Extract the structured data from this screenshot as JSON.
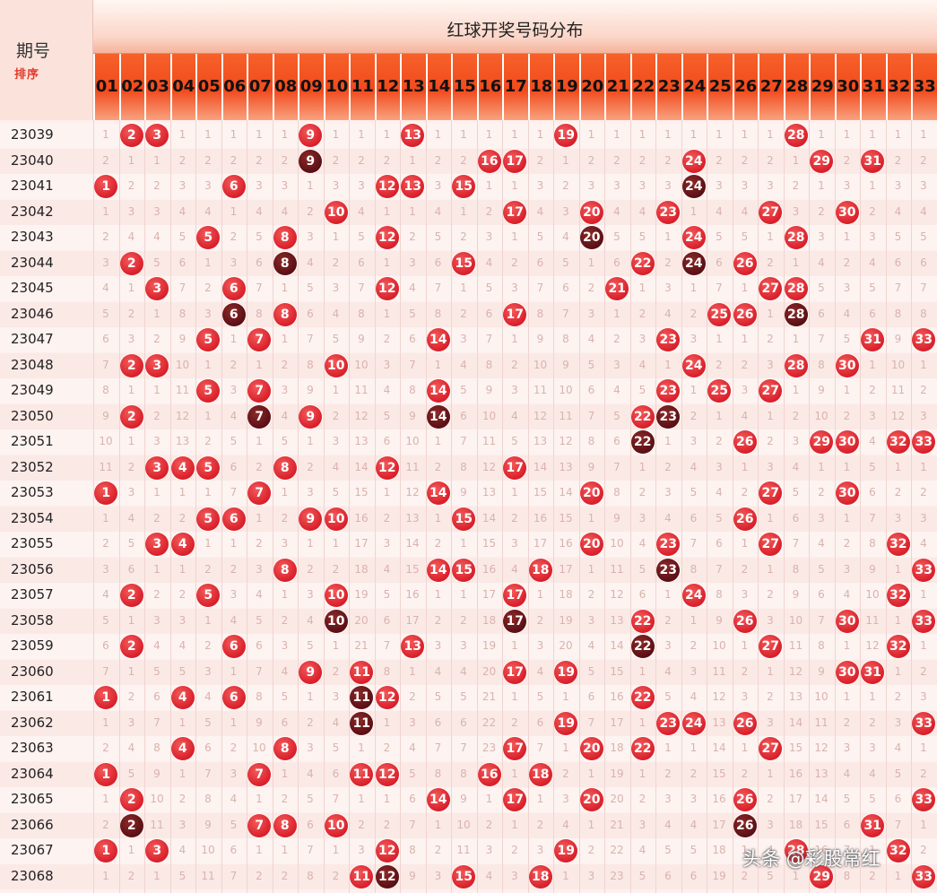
{
  "header": {
    "period_label": "期号",
    "logo_text": "排序",
    "section_title": "红球开奖号码分布"
  },
  "watermark": "头条 @彩股常红",
  "colors": {
    "ball_red": "#d91f2a",
    "ball_dark": "#5a0f14",
    "header_orange": "#f14a1c"
  },
  "chart_data": {
    "type": "table",
    "title": "红球开奖号码分布",
    "numbers": [
      "01",
      "02",
      "03",
      "04",
      "05",
      "06",
      "07",
      "08",
      "09",
      "10",
      "11",
      "12",
      "13",
      "14",
      "15",
      "16",
      "17",
      "18",
      "19",
      "20",
      "21",
      "22",
      "23",
      "24",
      "25",
      "26",
      "27",
      "28",
      "29",
      "30",
      "31",
      "32",
      "33"
    ],
    "draws": [
      {
        "period": "23039",
        "balls": [
          2,
          3,
          9,
          13,
          19,
          28
        ]
      },
      {
        "period": "23040",
        "balls": [
          9,
          16,
          17,
          24,
          29,
          31
        ]
      },
      {
        "period": "23041",
        "balls": [
          1,
          6,
          12,
          13,
          15,
          24
        ]
      },
      {
        "period": "23042",
        "balls": [
          10,
          17,
          20,
          23,
          27,
          30
        ]
      },
      {
        "period": "23043",
        "balls": [
          5,
          8,
          12,
          20,
          24,
          28
        ]
      },
      {
        "period": "23044",
        "balls": [
          2,
          8,
          15,
          22,
          24,
          26
        ]
      },
      {
        "period": "23045",
        "balls": [
          3,
          6,
          12,
          21,
          27,
          28
        ]
      },
      {
        "period": "23046",
        "balls": [
          6,
          8,
          17,
          25,
          26,
          28
        ]
      },
      {
        "period": "23047",
        "balls": [
          5,
          7,
          14,
          23,
          31,
          33
        ]
      },
      {
        "period": "23048",
        "balls": [
          2,
          3,
          10,
          24,
          28,
          30
        ]
      },
      {
        "period": "23049",
        "balls": [
          5,
          7,
          14,
          23,
          25,
          27
        ]
      },
      {
        "period": "23050",
        "balls": [
          2,
          7,
          9,
          14,
          22,
          23
        ]
      },
      {
        "period": "23051",
        "balls": [
          22,
          26,
          29,
          30,
          32,
          33
        ]
      },
      {
        "period": "23052",
        "balls": [
          3,
          4,
          5,
          8,
          12,
          17
        ]
      },
      {
        "period": "23053",
        "balls": [
          1,
          7,
          14,
          20,
          27,
          30
        ]
      },
      {
        "period": "23054",
        "balls": [
          5,
          6,
          9,
          10,
          15,
          26
        ]
      },
      {
        "period": "23055",
        "balls": [
          3,
          4,
          20,
          23,
          27,
          32
        ]
      },
      {
        "period": "23056",
        "balls": [
          8,
          14,
          15,
          18,
          23,
          33
        ]
      },
      {
        "period": "23057",
        "balls": [
          2,
          5,
          10,
          17,
          24,
          32
        ]
      },
      {
        "period": "23058",
        "balls": [
          10,
          17,
          22,
          26,
          30,
          33
        ]
      },
      {
        "period": "23059",
        "balls": [
          2,
          6,
          13,
          22,
          27,
          32
        ]
      },
      {
        "period": "23060",
        "balls": [
          9,
          11,
          17,
          19,
          30,
          31
        ]
      },
      {
        "period": "23061",
        "balls": [
          1,
          4,
          6,
          11,
          12,
          22
        ]
      },
      {
        "period": "23062",
        "balls": [
          11,
          19,
          23,
          24,
          26,
          33
        ]
      },
      {
        "period": "23063",
        "balls": [
          4,
          8,
          17,
          20,
          22,
          27
        ]
      },
      {
        "period": "23064",
        "balls": [
          1,
          7,
          11,
          12,
          16,
          18
        ]
      },
      {
        "period": "23065",
        "balls": [
          2,
          14,
          17,
          20,
          26,
          33
        ]
      },
      {
        "period": "23066",
        "balls": [
          2,
          7,
          8,
          10,
          26,
          31
        ]
      },
      {
        "period": "23067",
        "balls": [
          1,
          3,
          12,
          19,
          28,
          32
        ]
      },
      {
        "period": "23068",
        "balls": [
          11,
          12,
          15,
          18,
          29,
          33
        ]
      }
    ]
  }
}
